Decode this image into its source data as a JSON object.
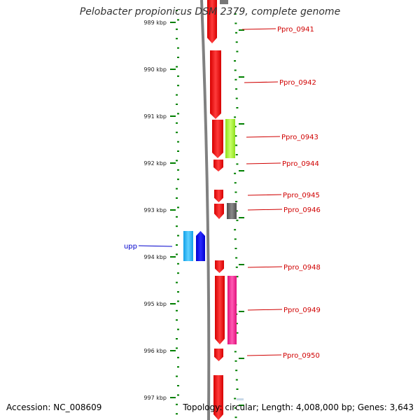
{
  "title": "Pelobacter propionicus DSM 2379, complete genome",
  "footer": {
    "accession": "Accession: NC_008609",
    "summary": "Topology: circular; Length: 4,008,000 bp; Genes: 3,643"
  },
  "axis": {
    "unit": "kbp",
    "ticks": [
      "989 kbp",
      "990 kbp",
      "991 kbp",
      "992 kbp",
      "993 kbp",
      "994 kbp",
      "995 kbp",
      "996 kbp",
      "997 kbp"
    ]
  },
  "colors": {
    "red_gene": "#ff0000",
    "tick_green": "#008000",
    "label_red": "#d00000",
    "label_blue": "#0000cc",
    "backbone": "#808080"
  },
  "genes": [
    {
      "label": "Ppro_0941",
      "color": "#ff0000",
      "lane": "forward"
    },
    {
      "label": "Ppro_0942",
      "color": "#ff0000",
      "lane": "forward"
    },
    {
      "label": "Ppro_0943",
      "color": "#a8ff2e",
      "lane": "forward"
    },
    {
      "label": "Ppro_0944",
      "color": "#ff0000",
      "lane": "forward"
    },
    {
      "label": "Ppro_0945",
      "color": "#ff0000",
      "lane": "forward"
    },
    {
      "label": "Ppro_0946",
      "color": "#666666",
      "lane": "forward"
    },
    {
      "label": "upp",
      "color": "#1ea7ff",
      "lane": "reverse"
    },
    {
      "label": "Ppro_0948",
      "color": "#ff0000",
      "lane": "forward"
    },
    {
      "label": "Ppro_0949",
      "color": "#ff1493",
      "lane": "forward"
    },
    {
      "label": "Ppro_0950",
      "color": "#ff0000",
      "lane": "forward"
    }
  ]
}
